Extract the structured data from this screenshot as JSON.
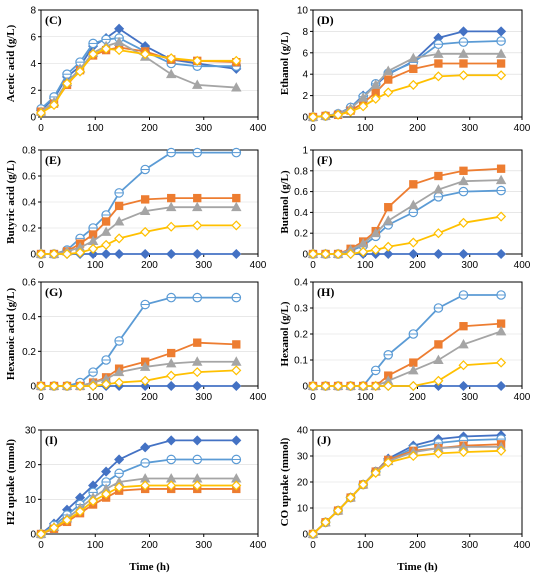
{
  "colors": {
    "dark_blue": "#4472c4",
    "light_blue": "#5b9bd5",
    "orange": "#ed7d31",
    "gray": "#a5a5a5",
    "yellow": "#ffc000"
  },
  "x_ticks": [
    "0",
    "100",
    "200",
    "300",
    "400"
  ],
  "x_axis_label": "Time (h)",
  "chart_data": [
    {
      "id": "C",
      "panel_label": "(C)",
      "type": "line",
      "ylabel": "Acetic acid (g/L)",
      "xlim": [
        0,
        400
      ],
      "ylim": [
        0,
        8
      ],
      "yticks": [
        0,
        2,
        4,
        6,
        8
      ],
      "ytick_labels": [
        "0",
        "2",
        "4",
        "6",
        "8"
      ],
      "x": [
        0,
        24,
        48,
        72,
        96,
        120,
        144,
        192,
        240,
        288,
        360
      ],
      "series": [
        {
          "color": "dark_blue",
          "marker": "diamond",
          "fill": "solid",
          "values": [
            0.5,
            1.4,
            3.0,
            3.8,
            5.3,
            5.9,
            6.6,
            5.3,
            4.3,
            4.0,
            3.6
          ]
        },
        {
          "color": "light_blue",
          "marker": "circle",
          "fill": "open",
          "values": [
            0.6,
            1.5,
            3.2,
            4.1,
            5.5,
            5.8,
            5.9,
            4.9,
            4.0,
            3.8,
            3.8
          ]
        },
        {
          "color": "orange",
          "marker": "square",
          "fill": "solid",
          "values": [
            0.4,
            1.0,
            2.4,
            3.5,
            4.6,
            5.0,
            5.2,
            4.9,
            4.3,
            4.2,
            4.1
          ]
        },
        {
          "color": "gray",
          "marker": "triangle",
          "fill": "solid",
          "values": [
            0.4,
            1.1,
            2.6,
            3.6,
            4.8,
            5.3,
            5.6,
            4.5,
            3.2,
            2.4,
            2.2
          ]
        },
        {
          "color": "yellow",
          "marker": "diamond",
          "fill": "open",
          "values": [
            0.3,
            0.9,
            2.5,
            3.4,
            4.7,
            5.1,
            5.0,
            4.7,
            4.4,
            4.2,
            4.2
          ]
        }
      ]
    },
    {
      "id": "D",
      "panel_label": "(D)",
      "type": "line",
      "ylabel": "Ethanol (g/L)",
      "xlim": [
        0,
        400
      ],
      "ylim": [
        0,
        10
      ],
      "yticks": [
        0,
        2,
        4,
        6,
        8,
        10
      ],
      "ytick_labels": [
        "0",
        "2",
        "4",
        "6",
        "8",
        "10"
      ],
      "x": [
        0,
        24,
        48,
        72,
        96,
        120,
        144,
        192,
        240,
        288,
        360
      ],
      "series": [
        {
          "color": "dark_blue",
          "marker": "diamond",
          "fill": "solid",
          "values": [
            0.0,
            0.1,
            0.3,
            0.9,
            2.0,
            3.0,
            4.0,
            5.2,
            7.4,
            8.0,
            8.0
          ]
        },
        {
          "color": "light_blue",
          "marker": "circle",
          "fill": "open",
          "values": [
            0.0,
            0.1,
            0.3,
            0.9,
            1.9,
            3.1,
            4.1,
            5.1,
            6.8,
            7.0,
            7.1
          ]
        },
        {
          "color": "orange",
          "marker": "square",
          "fill": "solid",
          "values": [
            0.0,
            0.1,
            0.2,
            0.6,
            1.3,
            2.3,
            3.5,
            4.5,
            5.0,
            5.0,
            5.0
          ]
        },
        {
          "color": "gray",
          "marker": "triangle",
          "fill": "solid",
          "values": [
            0.0,
            0.1,
            0.3,
            0.8,
            1.8,
            3.0,
            4.3,
            5.5,
            5.9,
            5.9,
            5.9
          ]
        },
        {
          "color": "yellow",
          "marker": "diamond",
          "fill": "open",
          "values": [
            0.0,
            0.1,
            0.2,
            0.5,
            1.0,
            1.7,
            2.3,
            3.0,
            3.8,
            3.9,
            3.9
          ]
        }
      ]
    },
    {
      "id": "E",
      "panel_label": "(E)",
      "type": "line",
      "ylabel": "Butyric acid (g/L)",
      "xlim": [
        0,
        400
      ],
      "ylim": [
        0,
        0.8
      ],
      "yticks": [
        0,
        0.2,
        0.4,
        0.6,
        0.8
      ],
      "ytick_labels": [
        "0",
        "0.2",
        "0.4",
        "0.6",
        "0.8"
      ],
      "x": [
        0,
        24,
        48,
        72,
        96,
        120,
        144,
        192,
        240,
        288,
        360
      ],
      "series": [
        {
          "color": "dark_blue",
          "marker": "diamond",
          "fill": "solid",
          "values": [
            0,
            0,
            0,
            0,
            0,
            0,
            0,
            0,
            0,
            0,
            0
          ]
        },
        {
          "color": "light_blue",
          "marker": "circle",
          "fill": "open",
          "values": [
            0,
            0.0,
            0.03,
            0.12,
            0.2,
            0.3,
            0.47,
            0.65,
            0.78,
            0.78,
            0.78
          ]
        },
        {
          "color": "orange",
          "marker": "square",
          "fill": "solid",
          "values": [
            0,
            0.0,
            0.02,
            0.08,
            0.15,
            0.25,
            0.37,
            0.42,
            0.43,
            0.43,
            0.43
          ]
        },
        {
          "color": "gray",
          "marker": "triangle",
          "fill": "solid",
          "values": [
            0,
            0.0,
            0.02,
            0.05,
            0.1,
            0.17,
            0.25,
            0.33,
            0.36,
            0.36,
            0.36
          ]
        },
        {
          "color": "yellow",
          "marker": "diamond",
          "fill": "open",
          "values": [
            0,
            0.0,
            0.0,
            0.01,
            0.04,
            0.07,
            0.12,
            0.17,
            0.21,
            0.22,
            0.22
          ]
        }
      ]
    },
    {
      "id": "F",
      "panel_label": "(F)",
      "type": "line",
      "ylabel": "Butanol (g/L)",
      "xlim": [
        0,
        400
      ],
      "ylim": [
        0,
        1
      ],
      "yticks": [
        0,
        0.2,
        0.4,
        0.6,
        0.8,
        1
      ],
      "ytick_labels": [
        "0",
        "0.2",
        "0.4",
        "0.6",
        "0.8",
        "1"
      ],
      "x": [
        0,
        24,
        48,
        72,
        96,
        120,
        144,
        192,
        240,
        288,
        360
      ],
      "series": [
        {
          "color": "dark_blue",
          "marker": "diamond",
          "fill": "solid",
          "values": [
            0,
            0,
            0,
            0,
            0,
            0,
            0,
            0,
            0,
            0,
            0
          ]
        },
        {
          "color": "light_blue",
          "marker": "circle",
          "fill": "open",
          "values": [
            0,
            0,
            0.0,
            0.03,
            0.08,
            0.17,
            0.28,
            0.4,
            0.55,
            0.6,
            0.61
          ]
        },
        {
          "color": "orange",
          "marker": "square",
          "fill": "solid",
          "values": [
            0,
            0,
            0.0,
            0.05,
            0.12,
            0.22,
            0.45,
            0.67,
            0.75,
            0.8,
            0.82
          ]
        },
        {
          "color": "gray",
          "marker": "triangle",
          "fill": "solid",
          "values": [
            0,
            0,
            0.0,
            0.04,
            0.1,
            0.2,
            0.32,
            0.47,
            0.62,
            0.7,
            0.71
          ]
        },
        {
          "color": "yellow",
          "marker": "diamond",
          "fill": "open",
          "values": [
            0,
            0,
            0.0,
            0.0,
            0.02,
            0.04,
            0.07,
            0.11,
            0.2,
            0.3,
            0.36
          ]
        }
      ]
    },
    {
      "id": "G",
      "panel_label": "(G)",
      "type": "line",
      "ylabel": "Hexanoic acid (g/L)",
      "xlim": [
        0,
        400
      ],
      "ylim": [
        0,
        0.6
      ],
      "yticks": [
        0,
        0.2,
        0.4,
        0.6
      ],
      "ytick_labels": [
        "0",
        "0.2",
        "0.4",
        "0.6"
      ],
      "x": [
        0,
        24,
        48,
        72,
        96,
        120,
        144,
        192,
        240,
        288,
        360
      ],
      "series": [
        {
          "color": "dark_blue",
          "marker": "diamond",
          "fill": "solid",
          "values": [
            0,
            0,
            0,
            0,
            0,
            0,
            0,
            0,
            0,
            0,
            0
          ]
        },
        {
          "color": "light_blue",
          "marker": "circle",
          "fill": "open",
          "values": [
            0,
            0,
            0.0,
            0.02,
            0.08,
            0.15,
            0.26,
            0.47,
            0.51,
            0.51,
            0.51
          ]
        },
        {
          "color": "orange",
          "marker": "square",
          "fill": "solid",
          "values": [
            0,
            0,
            0,
            0.0,
            0.02,
            0.05,
            0.1,
            0.14,
            0.19,
            0.25,
            0.24
          ]
        },
        {
          "color": "gray",
          "marker": "triangle",
          "fill": "solid",
          "values": [
            0,
            0,
            0,
            0.0,
            0.02,
            0.04,
            0.08,
            0.11,
            0.13,
            0.14,
            0.14
          ]
        },
        {
          "color": "yellow",
          "marker": "diamond",
          "fill": "open",
          "values": [
            0,
            0,
            0,
            0,
            0.0,
            0.01,
            0.02,
            0.03,
            0.06,
            0.08,
            0.09
          ]
        }
      ]
    },
    {
      "id": "H",
      "panel_label": "(H)",
      "type": "line",
      "ylabel": "Hexanol (g/L)",
      "xlim": [
        0,
        400
      ],
      "ylim": [
        0,
        0.4
      ],
      "yticks": [
        0,
        0.1,
        0.2,
        0.3,
        0.4
      ],
      "ytick_labels": [
        "0",
        "0.1",
        "0.2",
        "0.3",
        "0.4"
      ],
      "x": [
        0,
        24,
        48,
        72,
        96,
        120,
        144,
        192,
        240,
        288,
        360
      ],
      "series": [
        {
          "color": "dark_blue",
          "marker": "diamond",
          "fill": "solid",
          "values": [
            0,
            0,
            0,
            0,
            0,
            0,
            0,
            0,
            0,
            0,
            0
          ]
        },
        {
          "color": "light_blue",
          "marker": "circle",
          "fill": "open",
          "values": [
            0,
            0,
            0,
            0,
            0.0,
            0.06,
            0.12,
            0.2,
            0.3,
            0.35,
            0.35
          ]
        },
        {
          "color": "orange",
          "marker": "square",
          "fill": "solid",
          "values": [
            0,
            0,
            0,
            0,
            0,
            0.0,
            0.04,
            0.09,
            0.16,
            0.23,
            0.24
          ]
        },
        {
          "color": "gray",
          "marker": "triangle",
          "fill": "solid",
          "values": [
            0,
            0,
            0,
            0,
            0,
            0.0,
            0.02,
            0.06,
            0.1,
            0.16,
            0.21
          ]
        },
        {
          "color": "yellow",
          "marker": "diamond",
          "fill": "open",
          "values": [
            0,
            0,
            0,
            0,
            0,
            0,
            0,
            0.0,
            0.02,
            0.08,
            0.09
          ]
        }
      ]
    },
    {
      "id": "I",
      "panel_label": "(I)",
      "type": "line",
      "ylabel": "H2 uptake (mmol)",
      "xlim": [
        0,
        400
      ],
      "ylim": [
        0,
        30
      ],
      "yticks": [
        0,
        10,
        20,
        30
      ],
      "ytick_labels": [
        "0",
        "10",
        "20",
        "30"
      ],
      "x": [
        0,
        24,
        48,
        72,
        96,
        120,
        144,
        192,
        240,
        288,
        360
      ],
      "series": [
        {
          "color": "dark_blue",
          "marker": "diamond",
          "fill": "solid",
          "values": [
            0,
            3,
            7,
            10.5,
            14,
            18,
            21.5,
            25,
            27,
            27,
            27
          ]
        },
        {
          "color": "light_blue",
          "marker": "circle",
          "fill": "open",
          "values": [
            0,
            2.5,
            5.5,
            8.5,
            12,
            15,
            17.5,
            20.5,
            21.5,
            21.5,
            21.5
          ]
        },
        {
          "color": "orange",
          "marker": "square",
          "fill": "solid",
          "values": [
            0,
            1.5,
            3.5,
            6,
            8.5,
            10.5,
            12.5,
            13,
            13,
            13,
            13
          ]
        },
        {
          "color": "gray",
          "marker": "triangle",
          "fill": "solid",
          "values": [
            0,
            2,
            4.5,
            7.5,
            10.5,
            13,
            15,
            16,
            16,
            16,
            16
          ]
        },
        {
          "color": "yellow",
          "marker": "diamond",
          "fill": "open",
          "values": [
            0,
            1.8,
            4,
            6.5,
            9.5,
            11.5,
            13.5,
            14,
            14,
            14,
            14
          ]
        }
      ]
    },
    {
      "id": "J",
      "panel_label": "(J)",
      "type": "line",
      "ylabel": "CO uptake (mmol)",
      "xlim": [
        0,
        400
      ],
      "ylim": [
        0,
        40
      ],
      "yticks": [
        0,
        10,
        20,
        30,
        40
      ],
      "ytick_labels": [
        "0",
        "10",
        "20",
        "30",
        "40"
      ],
      "x": [
        0,
        24,
        48,
        72,
        96,
        120,
        144,
        192,
        240,
        288,
        360
      ],
      "series": [
        {
          "color": "dark_blue",
          "marker": "diamond",
          "fill": "solid",
          "values": [
            0,
            4.5,
            9,
            14,
            19,
            24,
            29,
            34,
            36.5,
            37.5,
            38
          ]
        },
        {
          "color": "light_blue",
          "marker": "circle",
          "fill": "open",
          "values": [
            0,
            4.5,
            9,
            14,
            19,
            24,
            28.5,
            33,
            35,
            36,
            36.5
          ]
        },
        {
          "color": "orange",
          "marker": "square",
          "fill": "solid",
          "values": [
            0,
            4.5,
            9,
            14,
            19,
            24,
            28.5,
            32,
            33,
            34,
            34.5
          ]
        },
        {
          "color": "gray",
          "marker": "triangle",
          "fill": "solid",
          "values": [
            0,
            4.5,
            9,
            14,
            19,
            24,
            28,
            31.5,
            33,
            33.5,
            33.5
          ]
        },
        {
          "color": "yellow",
          "marker": "diamond",
          "fill": "open",
          "values": [
            0,
            4.5,
            9,
            14,
            19,
            23.5,
            27.5,
            30,
            31,
            31.5,
            32
          ]
        }
      ]
    }
  ]
}
